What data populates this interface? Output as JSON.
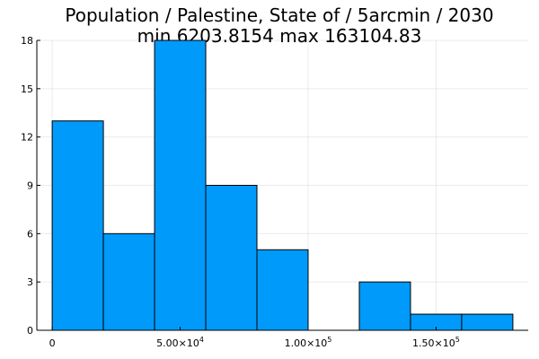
{
  "chart_data": {
    "type": "bar",
    "title_line1": "Population / Palestine, State of / 5arcmin / 2030",
    "title_line2": "min 6203.8154  max 163104.83",
    "bin_edges": [
      0,
      20000,
      40000,
      60000,
      80000,
      100000,
      120000,
      140000,
      160000,
      180000
    ],
    "values": [
      13,
      6,
      18,
      9,
      5,
      0,
      3,
      1,
      1
    ],
    "xlim": [
      -6000,
      186000
    ],
    "ylim": [
      0,
      18
    ],
    "x_ticks": [
      {
        "value": 0,
        "base": "0",
        "exp": ""
      },
      {
        "value": 50000,
        "base": "5.00×10",
        "exp": "4"
      },
      {
        "value": 100000,
        "base": "1.00×10",
        "exp": "5"
      },
      {
        "value": 150000,
        "base": "1.50×10",
        "exp": "5"
      }
    ],
    "y_ticks": [
      {
        "value": 0,
        "label": "0"
      },
      {
        "value": 3,
        "label": "3"
      },
      {
        "value": 6,
        "label": "6"
      },
      {
        "value": 9,
        "label": "9"
      },
      {
        "value": 12,
        "label": "12"
      },
      {
        "value": 15,
        "label": "15"
      },
      {
        "value": 18,
        "label": "18"
      }
    ],
    "grid": true,
    "legend": "none",
    "bar_color": "#009AFA",
    "bar_edge_color": "#000000"
  }
}
